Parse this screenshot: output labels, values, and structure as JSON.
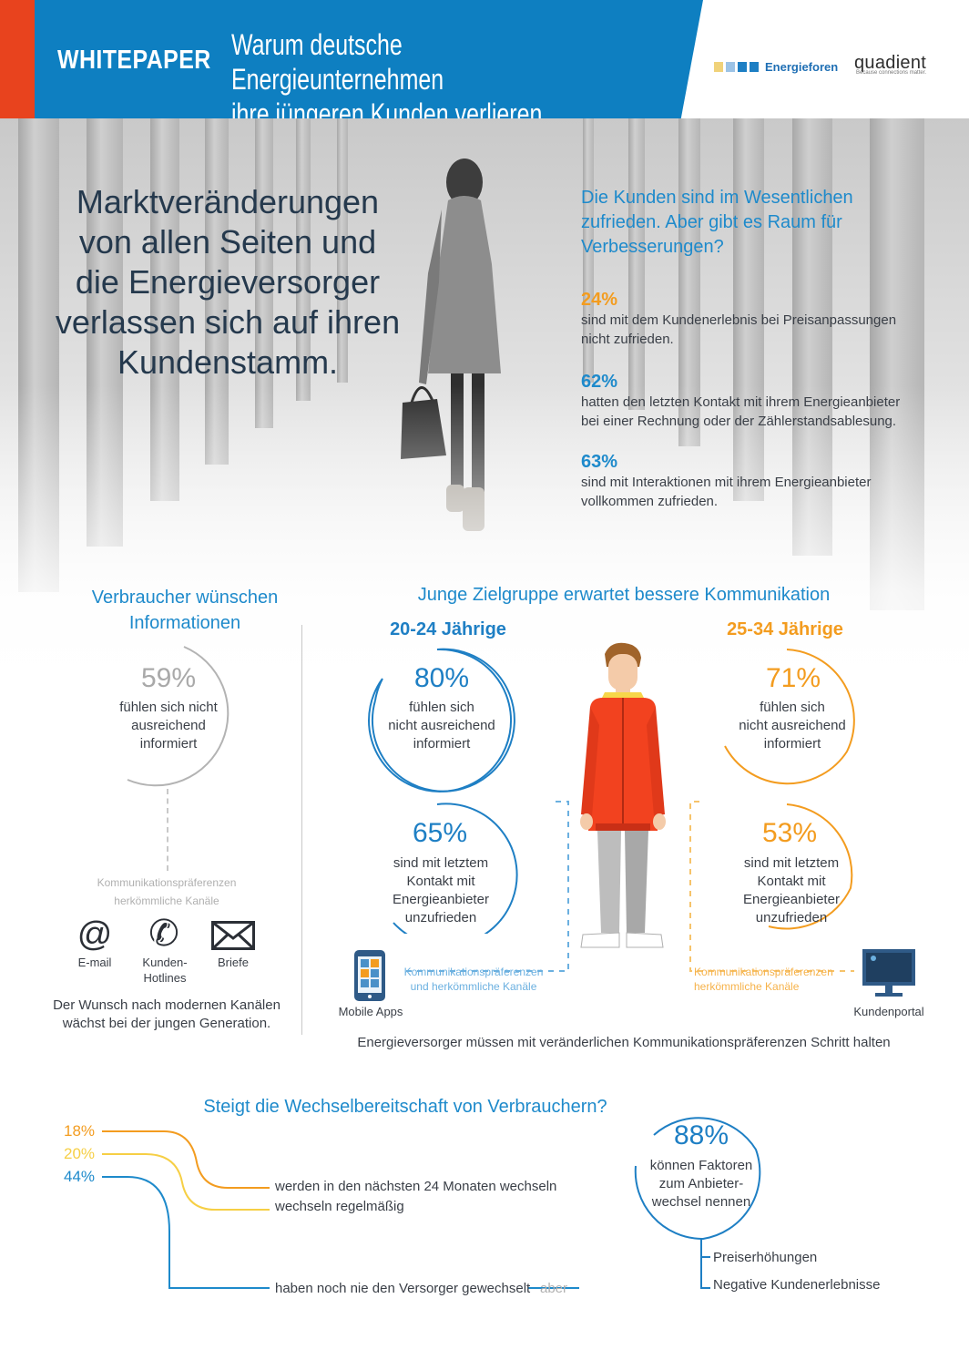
{
  "header": {
    "label": "WHITEPAPER",
    "title_line1": "Warum deutsche Energieunternehmen",
    "title_line2": "ihre jüngeren Kunden verlieren",
    "logo1": "Energieforen",
    "logo2": "quadient",
    "logo2_tagline": "Because connections matter."
  },
  "hero": {
    "title_lines": [
      "Marktveränderungen",
      "von allen Seiten und",
      "die Energieversorger",
      "verlassen sich auf ihren",
      "Kundenstamm."
    ],
    "question_lines": [
      "Die Kunden sind im Wesentlichen",
      "zufrieden. Aber gibt es Raum für",
      "Verbesserungen?"
    ],
    "stats": [
      {
        "pct": "24%",
        "color": "#f39c1f",
        "line1": "sind mit dem Kundenerlebnis bei Preisanpassungen",
        "line2": "nicht zufrieden."
      },
      {
        "pct": "62%",
        "color": "#1e8acb",
        "line1": "hatten den letzten Kontakt mit ihrem Energieanbieter",
        "line2": "bei einer Rechnung oder der Zählerstandsablesung."
      },
      {
        "pct": "63%",
        "color": "#1e8acb",
        "line1": "sind mit Interaktionen mit ihrem Energieanbieter",
        "line2": "vollkommen zufrieden."
      }
    ]
  },
  "left_section": {
    "heading_line1": "Verbraucher wünschen",
    "heading_line2": "Informationen",
    "pct": "59%",
    "text_lines": [
      "fühlen sich nicht",
      "ausreichend",
      "informiert"
    ],
    "pref_line1": "Kommunikationspräferenzen",
    "pref_line2": "herkömmliche Kanäle",
    "channels": [
      {
        "icon": "at-icon",
        "glyph": "@",
        "label1": "E-mail",
        "label2": ""
      },
      {
        "icon": "phone-icon",
        "glyph": "✆",
        "label1": "Kunden-",
        "label2": "Hotlines"
      },
      {
        "icon": "envelope-icon",
        "glyph": "✉",
        "label1": "Briefe",
        "label2": ""
      }
    ],
    "note_line1": "Der Wunsch nach modernen Kanälen",
    "note_line2": "wächst bei der jungen Generation."
  },
  "right_section": {
    "heading": "Junge Zielgruppe erwartet bessere Kommunikation",
    "group1": {
      "title": "20-24 Jährige",
      "color": "#1e7fc4",
      "stat1_pct": "80%",
      "stat1_lines": [
        "fühlen sich",
        "nicht ausreichend",
        "informiert"
      ],
      "stat2_pct": "65%",
      "stat2_lines": [
        "sind mit letztem",
        "Kontakt mit",
        "Energieanbieter",
        "unzufrieden"
      ]
    },
    "group2": {
      "title": "25-34 Jährige",
      "color": "#f39c1f",
      "stat1_pct": "71%",
      "stat1_lines": [
        "fühlen sich",
        "nicht ausreichend",
        "informiert"
      ],
      "stat2_pct": "53%",
      "stat2_lines": [
        "sind mit letztem",
        "Kontakt mit",
        "Energieanbieter",
        "unzufrieden"
      ]
    },
    "pref_left_line1": "Kommunikationspräferenzen",
    "pref_left_line2": "und herkömmliche Kanäle",
    "pref_right_line1": "Kommunikationspräferenzen",
    "pref_right_line2": "herkömmliche Kanäle",
    "mobile_label": "Mobile Apps",
    "portal_label": "Kundenportal",
    "footer": "Energieversorger müssen mit veränderlichen Kommunikationspräferenzen  Schritt halten"
  },
  "bottom": {
    "heading": "Steigt die Wechselbereitschaft von Verbrauchern?",
    "items": [
      {
        "pct": "18%",
        "color": "#f39c1f",
        "text": "werden in den nächsten 24 Monaten wechseln"
      },
      {
        "pct": "20%",
        "color": "#f6cf45",
        "text": "wechseln regelmäßig"
      },
      {
        "pct": "44%",
        "color": "#1e8acb",
        "text": "haben noch nie den Versorger gewechselt"
      }
    ],
    "aber": "aber",
    "big_pct": "88%",
    "big_lines": [
      "können Faktoren",
      "zum Anbieter-",
      "wechsel nennen"
    ],
    "factors": [
      "Preiserhöhungen",
      "Negative Kundenerlebnisse"
    ]
  }
}
